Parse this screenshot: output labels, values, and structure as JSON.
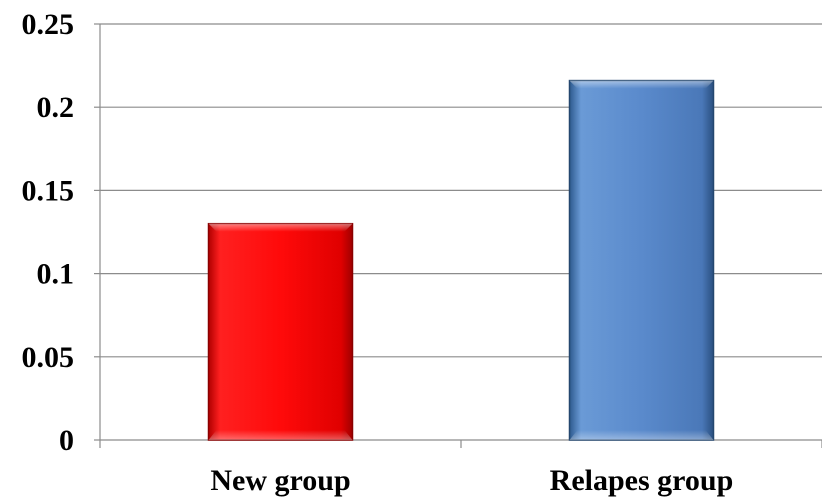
{
  "chart_data": {
    "type": "bar",
    "categories": [
      "New group",
      "Relapes group"
    ],
    "values": [
      0.13,
      0.216
    ],
    "title": "",
    "xlabel": "",
    "ylabel": "",
    "ylim": [
      0,
      0.25
    ],
    "yticks": [
      "0",
      "0.05",
      "0.1",
      "0.15",
      "0.2",
      "0.25"
    ],
    "ytick_values": [
      0,
      0.05,
      0.1,
      0.15,
      0.2,
      0.25
    ],
    "grid": true,
    "legend": "none",
    "bar_colors": [
      "#e8000b",
      "#4f81bd"
    ]
  },
  "colors": {
    "grid": "#8c8c8c",
    "axis": "#8c8c8c"
  }
}
